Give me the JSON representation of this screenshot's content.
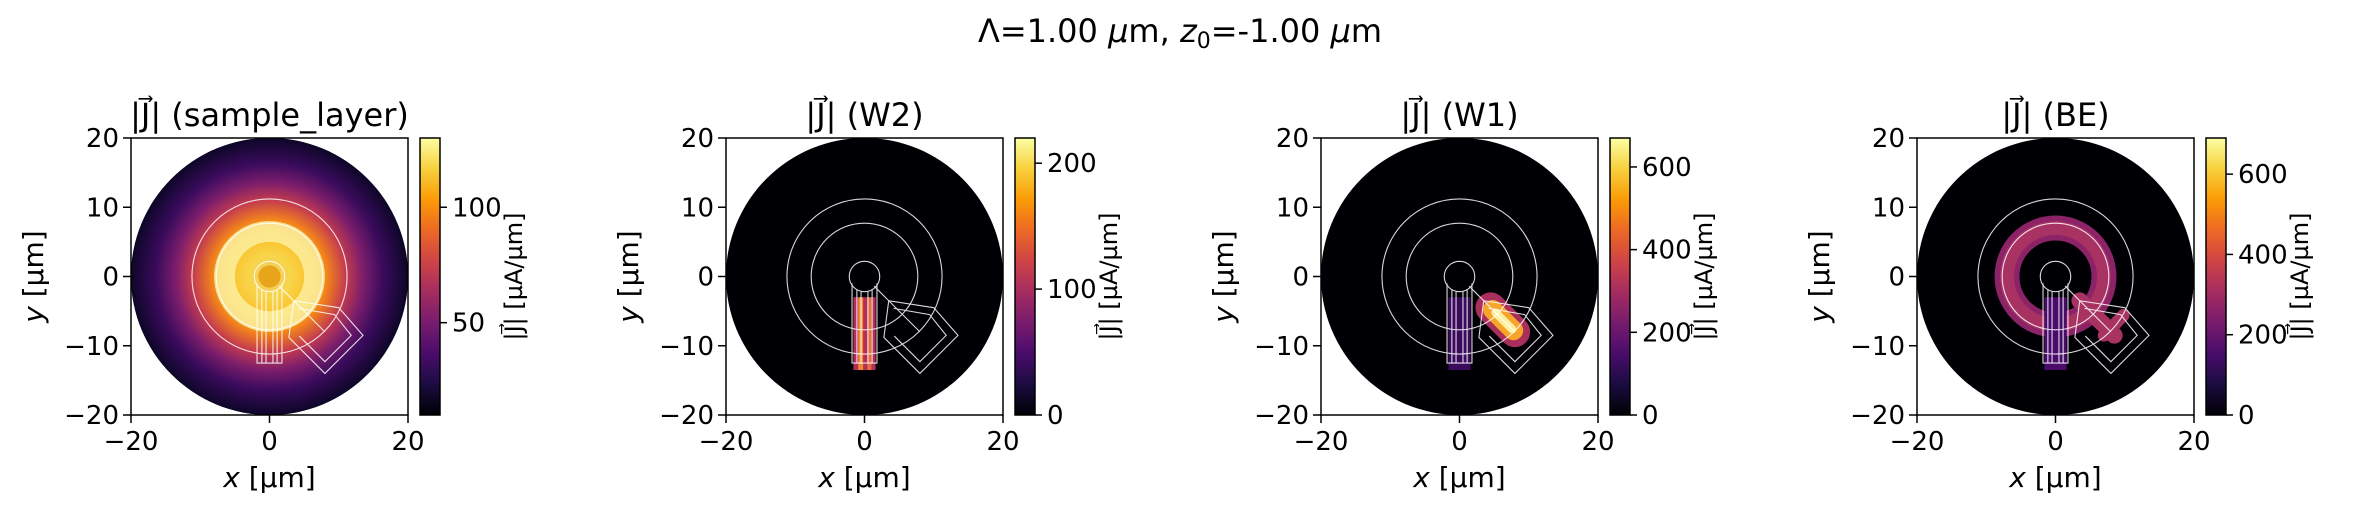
{
  "figure": {
    "suptitle_main": "Λ=1.00 ",
    "suptitle_unit": "μ",
    "suptitle_unit_m": "m, ",
    "suptitle_z": "z",
    "suptitle_z_sub": "0",
    "suptitle_z_val": "=-1.00 ",
    "suptitle_z_unit": "μ",
    "suptitle_z_unit_m": "m"
  },
  "chart_data": [
    {
      "type": "heatmap",
      "title_prefix": "|J⃗| ",
      "title": "(sample_layer)",
      "xlabel_var": "x",
      "xlabel_unit": " [µm]",
      "ylabel_var": "y",
      "ylabel_unit": " [µm]",
      "xlim": [
        -20,
        20
      ],
      "ylim": [
        -20,
        20
      ],
      "xticks": [
        "−20",
        "0",
        "20"
      ],
      "yticks": [
        "−20",
        "−10",
        "0",
        "10",
        "20"
      ],
      "colorbar_label": "|J⃗| [µA/µm]",
      "colorbar_range": [
        10,
        130
      ],
      "colorbar_ticks": [
        {
          "value": 50,
          "label": "50"
        },
        {
          "value": 100,
          "label": "100"
        }
      ],
      "colormap": "inferno",
      "pattern": "ring-diffuse"
    },
    {
      "type": "heatmap",
      "title_prefix": "|J⃗| ",
      "title": "(W2)",
      "xlabel_var": "x",
      "xlabel_unit": " [µm]",
      "ylabel_var": "y",
      "ylabel_unit": " [µm]",
      "xlim": [
        -20,
        20
      ],
      "ylim": [
        -20,
        20
      ],
      "xticks": [
        "−20",
        "0",
        "20"
      ],
      "yticks": [
        "−20",
        "−10",
        "0",
        "10",
        "20"
      ],
      "colorbar_label": "|J⃗| [µA/µm]",
      "colorbar_range": [
        0,
        220
      ],
      "colorbar_ticks": [
        {
          "value": 0,
          "label": "0"
        },
        {
          "value": 100,
          "label": "100"
        },
        {
          "value": 200,
          "label": "200"
        }
      ],
      "colormap": "inferno",
      "pattern": "leads-only"
    },
    {
      "type": "heatmap",
      "title_prefix": "|J⃗| ",
      "title": "(W1)",
      "xlabel_var": "x",
      "xlabel_unit": " [µm]",
      "ylabel_var": "y",
      "ylabel_unit": " [µm]",
      "xlim": [
        -20,
        20
      ],
      "ylim": [
        -20,
        20
      ],
      "xticks": [
        "−20",
        "0",
        "20"
      ],
      "yticks": [
        "−20",
        "−10",
        "0",
        "10",
        "20"
      ],
      "colorbar_label": "|J⃗| [µA/µm]",
      "colorbar_range": [
        0,
        670
      ],
      "colorbar_ticks": [
        {
          "value": 0,
          "label": "0"
        },
        {
          "value": 200,
          "label": "200"
        },
        {
          "value": 400,
          "label": "400"
        },
        {
          "value": 600,
          "label": "600"
        }
      ],
      "colormap": "inferno",
      "pattern": "diagonal-hot"
    },
    {
      "type": "heatmap",
      "title_prefix": "|J⃗| ",
      "title": "(BE)",
      "xlabel_var": "x",
      "xlabel_unit": " [µm]",
      "ylabel_var": "y",
      "ylabel_unit": " [µm]",
      "xlim": [
        -20,
        20
      ],
      "ylim": [
        -20,
        20
      ],
      "xticks": [
        "−20",
        "0",
        "20"
      ],
      "yticks": [
        "−20",
        "−10",
        "0",
        "10",
        "20"
      ],
      "colorbar_label": "|J⃗| [µA/µm]",
      "colorbar_range": [
        0,
        690
      ],
      "colorbar_ticks": [
        {
          "value": 0,
          "label": "0"
        },
        {
          "value": 200,
          "label": "200"
        },
        {
          "value": 400,
          "label": "400"
        },
        {
          "value": 600,
          "label": "600"
        }
      ],
      "colormap": "inferno",
      "pattern": "ring-sharp"
    }
  ]
}
